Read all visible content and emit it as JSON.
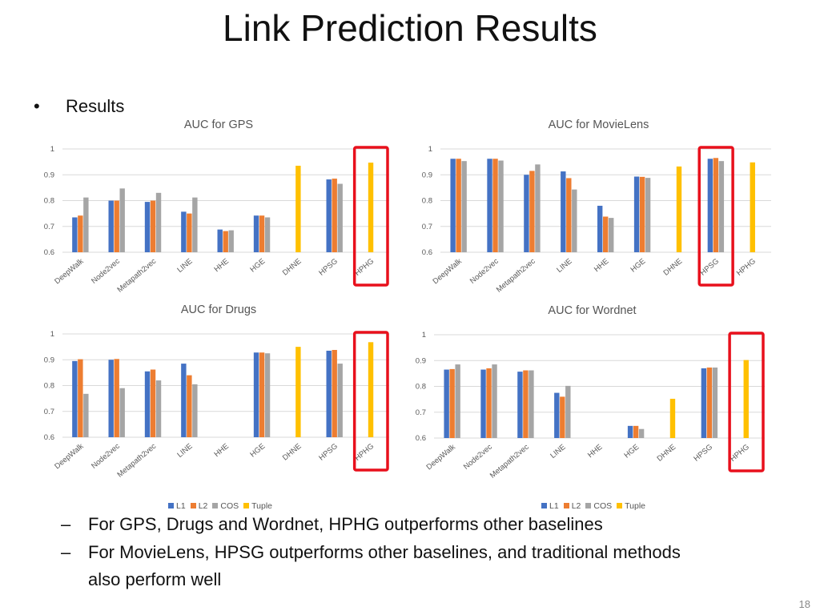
{
  "slide": {
    "title": "Link Prediction Results",
    "bullet": "Results",
    "dash": "–",
    "sub1": "For GPS, Drugs and Wordnet, HPHG outperforms other baselines",
    "sub2_line1": "For MovieLens, HPSG outperforms other baselines, and traditional methods",
    "sub2_line2": "also perform well",
    "page_number": "18"
  },
  "legend_labels": [
    "L1",
    "L2",
    "COS",
    "Tuple"
  ],
  "colors": {
    "L1": "#4472C4",
    "L2": "#ED7D31",
    "COS": "#A5A5A5",
    "Tuple": "#FFC000",
    "highlight": "#E8101C",
    "grid": "#D9D9D9"
  },
  "chart_data": [
    {
      "type": "bar",
      "title": "AUC for GPS",
      "categories": [
        "DeepWalk",
        "Node2vec",
        "Metapath2vec",
        "LINE",
        "HHE",
        "HGE",
        "DHNE",
        "HPSG",
        "HPHG"
      ],
      "ylim": [
        0.6,
        1.0
      ],
      "yticks": [
        "0.6",
        "0.7",
        "0.8",
        "0.9",
        "1"
      ],
      "highlight": "HPHG",
      "series": [
        {
          "name": "L1",
          "values": [
            0.735,
            0.8,
            0.795,
            0.757,
            0.688,
            0.742,
            null,
            0.882,
            null
          ]
        },
        {
          "name": "L2",
          "values": [
            0.742,
            0.8,
            0.8,
            0.75,
            0.682,
            0.742,
            null,
            0.885,
            null
          ]
        },
        {
          "name": "COS",
          "values": [
            0.812,
            0.847,
            0.83,
            0.812,
            0.685,
            0.735,
            null,
            0.865,
            null
          ]
        },
        {
          "name": "Tuple",
          "values": [
            null,
            null,
            null,
            null,
            null,
            null,
            0.935,
            null,
            0.947
          ]
        }
      ]
    },
    {
      "type": "bar",
      "title": "AUC for MovieLens",
      "categories": [
        "DeepWalk",
        "Node2vec",
        "Metapath2vec",
        "LINE",
        "HHE",
        "HGE",
        "DHNE",
        "HPSG",
        "HPHG"
      ],
      "ylim": [
        0.6,
        1.0
      ],
      "yticks": [
        "0.6",
        "0.7",
        "0.8",
        "0.9",
        "1"
      ],
      "highlight": "HPSG",
      "series": [
        {
          "name": "L1",
          "values": [
            0.962,
            0.962,
            0.9,
            0.913,
            0.78,
            0.893,
            null,
            0.962,
            null
          ]
        },
        {
          "name": "L2",
          "values": [
            0.962,
            0.962,
            0.915,
            0.887,
            0.738,
            0.892,
            null,
            0.965,
            null
          ]
        },
        {
          "name": "COS",
          "values": [
            0.953,
            0.955,
            0.94,
            0.843,
            0.733,
            0.888,
            null,
            0.953,
            null
          ]
        },
        {
          "name": "Tuple",
          "values": [
            null,
            null,
            null,
            null,
            null,
            null,
            0.932,
            null,
            0.948
          ]
        }
      ]
    },
    {
      "type": "bar",
      "title": "AUC for Drugs",
      "categories": [
        "DeepWalk",
        "Node2vec",
        "Metapath2vec",
        "LINE",
        "HHE",
        "HGE",
        "DHNE",
        "HPSG",
        "HPHG"
      ],
      "ylim": [
        0.6,
        1.0
      ],
      "yticks": [
        "0.6",
        "0.7",
        "0.8",
        "0.9",
        "1"
      ],
      "highlight": "HPHG",
      "series": [
        {
          "name": "L1",
          "values": [
            0.895,
            0.9,
            0.855,
            0.885,
            null,
            0.928,
            null,
            0.935,
            null
          ]
        },
        {
          "name": "L2",
          "values": [
            0.902,
            0.903,
            0.862,
            0.84,
            null,
            0.928,
            null,
            0.938,
            null
          ]
        },
        {
          "name": "COS",
          "values": [
            0.768,
            0.79,
            0.82,
            0.805,
            null,
            0.925,
            null,
            0.885,
            null
          ]
        },
        {
          "name": "Tuple",
          "values": [
            null,
            null,
            null,
            null,
            null,
            null,
            0.95,
            null,
            0.968
          ]
        }
      ]
    },
    {
      "type": "bar",
      "title": "AUC for Wordnet",
      "categories": [
        "DeepWalk",
        "Node2vec",
        "Metapath2vec",
        "LINE",
        "HHE",
        "HGE",
        "DHNE",
        "HPSG",
        "HPHG"
      ],
      "ylim": [
        0.6,
        1.0
      ],
      "yticks": [
        "0.6",
        "0.7",
        "0.8",
        "0.9",
        "1"
      ],
      "highlight": "HPHG",
      "series": [
        {
          "name": "L1",
          "values": [
            0.865,
            0.865,
            0.857,
            0.775,
            null,
            0.647,
            null,
            0.87,
            null
          ]
        },
        {
          "name": "L2",
          "values": [
            0.867,
            0.87,
            0.862,
            0.76,
            null,
            0.647,
            null,
            0.873,
            null
          ]
        },
        {
          "name": "COS",
          "values": [
            0.885,
            0.885,
            0.862,
            0.802,
            null,
            0.635,
            null,
            0.873,
            null
          ]
        },
        {
          "name": "Tuple",
          "values": [
            null,
            null,
            null,
            null,
            null,
            null,
            0.752,
            null,
            0.902
          ]
        }
      ]
    }
  ]
}
